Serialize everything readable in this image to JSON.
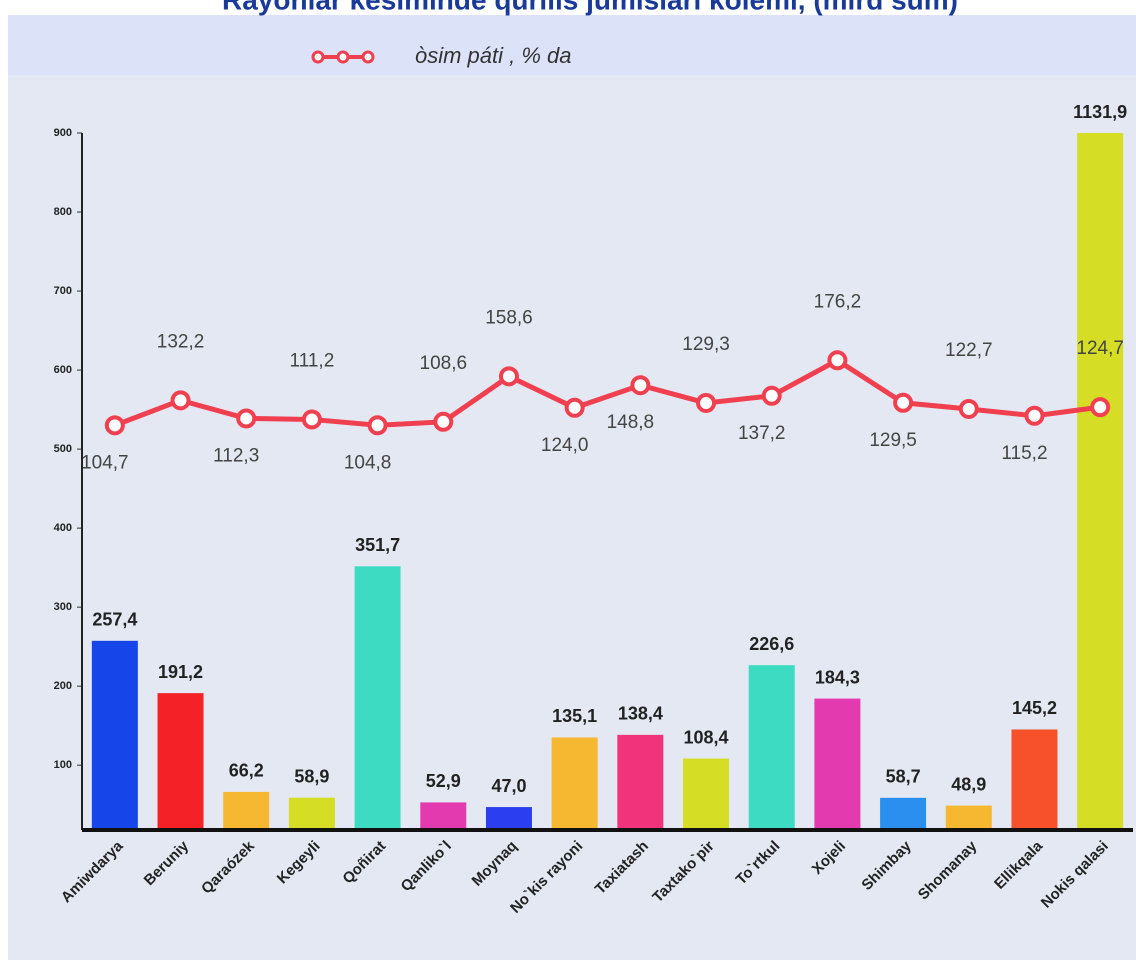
{
  "chart_data": {
    "type": "bar",
    "title": "Rayonlar kesiminde qurilis jumislari kolemi, (mlrd sum)",
    "categories": [
      "Amiwdarya",
      "Beruniy",
      "Qaraózek",
      "Kegeyli",
      "Qoñirat",
      "Qanliko`l",
      "Moynaq",
      "No`kis rayoni",
      "Taxiatash",
      "Taxtako`pir",
      "To`rtkul",
      "Xojeli",
      "Shimbay",
      "Shomanay",
      "Ellikqala",
      "Nokis qalasi"
    ],
    "ylim": [
      18,
      900
    ],
    "yticks": [
      100,
      200,
      300,
      400,
      500,
      600,
      700,
      800,
      900
    ],
    "y2lim": [
      -340,
      426
    ],
    "series": [
      {
        "name": "mlrd sum",
        "type": "bar",
        "colors": [
          "#1646ea",
          "#f42127",
          "#f6b731",
          "#d5dd24",
          "#3ddcc2",
          "#e33ab0",
          "#2b3ff0",
          "#f6b731",
          "#f1337b",
          "#d5dd24",
          "#3ddcc2",
          "#e33ab0",
          "#2b8ff0",
          "#f6b731",
          "#f6512a",
          "#d5dd24"
        ],
        "values": [
          257.4,
          191.2,
          66.2,
          58.9,
          351.7,
          52.9,
          47.0,
          135.1,
          138.4,
          108.4,
          226.6,
          184.3,
          58.7,
          48.9,
          145.2,
          1131.9
        ],
        "value_labels": [
          "257,4",
          "191,2",
          "66,2",
          "58,9",
          "351,7",
          "52,9",
          "47,0",
          "135,1",
          "138,4",
          "108,4",
          "226,6",
          "184,3",
          "58,7",
          "48,9",
          "145,2",
          "1131,9"
        ]
      },
      {
        "name": "òsim páti , % da",
        "type": "line",
        "axis": "y2",
        "color": "#f0404f",
        "values": [
          104.7,
          132.2,
          112.3,
          111.2,
          104.8,
          108.6,
          158.6,
          124.0,
          148.8,
          129.3,
          137.2,
          176.2,
          129.5,
          122.7,
          115.2,
          124.7
        ],
        "value_labels": [
          "104,7",
          "132,2",
          "112,3",
          "111,2",
          "104,8",
          "108,6",
          "158,6",
          "124,0",
          "148,8",
          "129,3",
          "137,2",
          "176,2",
          "129,5",
          "122,7",
          "115,2",
          "124,7"
        ]
      }
    ]
  }
}
